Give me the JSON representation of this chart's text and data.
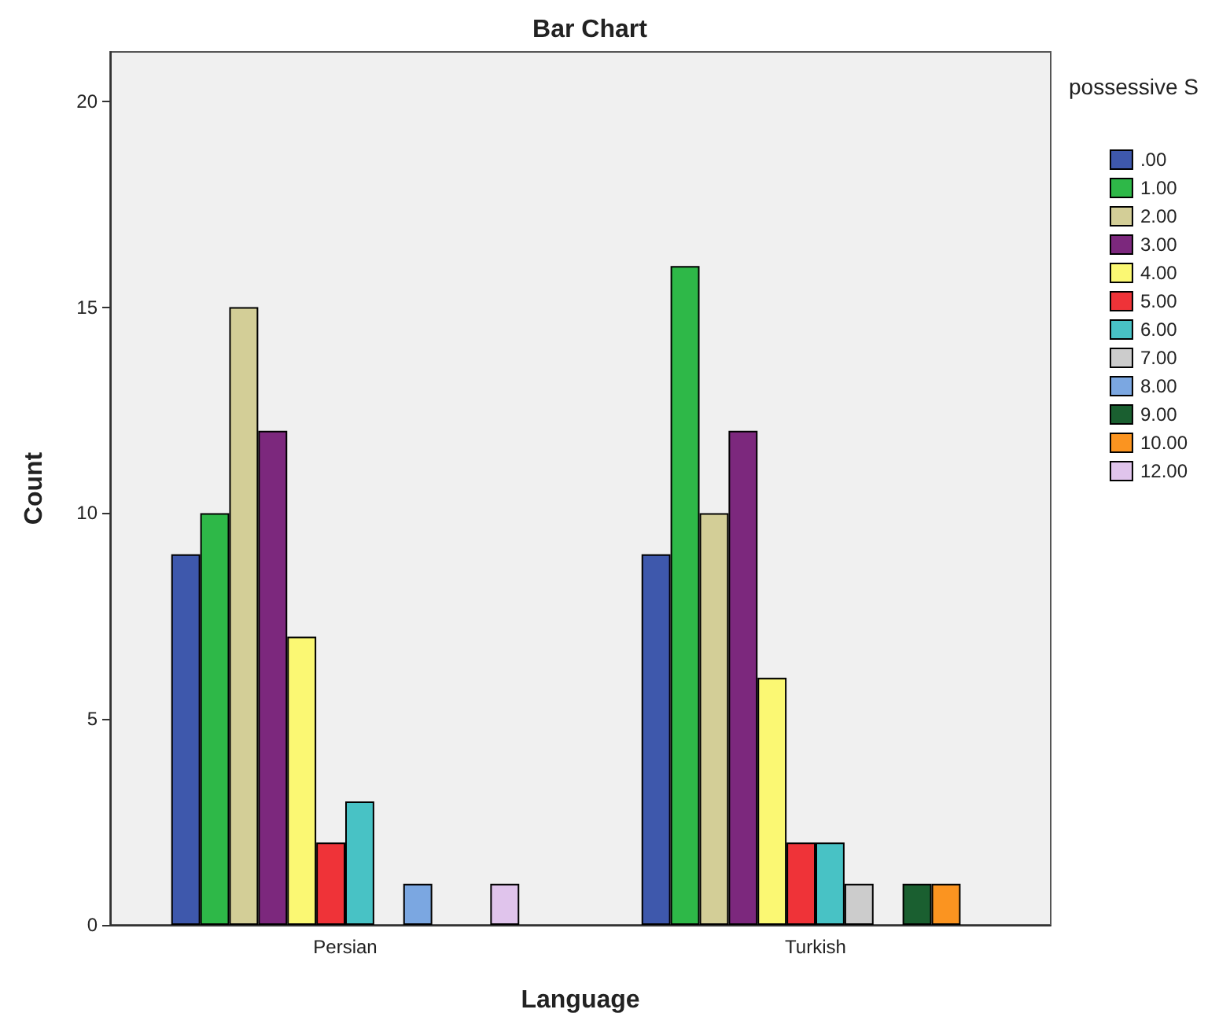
{
  "chart_data": {
    "type": "bar",
    "title": "Bar Chart",
    "xlabel": "Language",
    "ylabel": "Count",
    "legend_title": "possessive S",
    "categories": [
      "Persian",
      "Turkish"
    ],
    "series": [
      {
        "name": ".00",
        "color": "#3e58ac",
        "values": [
          9,
          9
        ]
      },
      {
        "name": "1.00",
        "color": "#2eb848",
        "values": [
          10,
          16
        ]
      },
      {
        "name": "2.00",
        "color": "#d3ce97",
        "values": [
          15,
          10
        ]
      },
      {
        "name": "3.00",
        "color": "#7c287d",
        "values": [
          12,
          12
        ]
      },
      {
        "name": "4.00",
        "color": "#fbf873",
        "values": [
          7,
          6
        ]
      },
      {
        "name": "5.00",
        "color": "#ef3338",
        "values": [
          2,
          2
        ]
      },
      {
        "name": "6.00",
        "color": "#48c2c5",
        "values": [
          3,
          2
        ]
      },
      {
        "name": "7.00",
        "color": "#cccccc",
        "values": [
          null,
          1
        ]
      },
      {
        "name": "8.00",
        "color": "#7ba7e1",
        "values": [
          1,
          null
        ]
      },
      {
        "name": "9.00",
        "color": "#1a5f30",
        "values": [
          null,
          1
        ]
      },
      {
        "name": "10.00",
        "color": "#fb9420",
        "values": [
          null,
          1
        ]
      },
      {
        "name": "12.00",
        "color": "#e0c4ec",
        "values": [
          1,
          null
        ]
      }
    ],
    "ylim": [
      0,
      21.2
    ],
    "yticks": [
      0,
      5,
      10,
      15,
      20
    ],
    "grid": false,
    "legend": "right"
  }
}
